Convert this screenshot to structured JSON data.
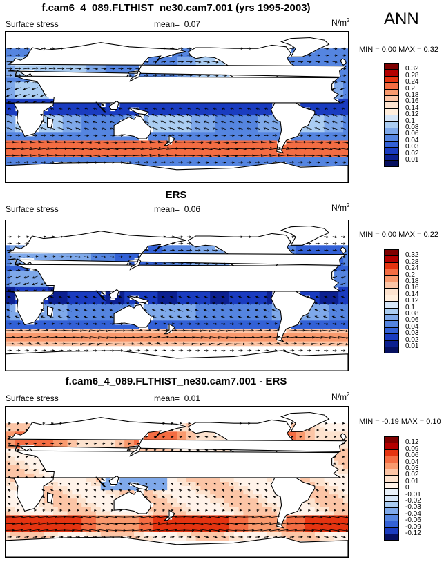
{
  "season": "ANN",
  "units_base": "N/m",
  "units_exp": "2",
  "panels": [
    {
      "title": "f.cam6_4_089.FLTHIST_ne30.cam7.001 (yrs 1995-2003)",
      "variable": "Surface stress",
      "mean_label": "mean=",
      "mean_value": "0.07",
      "minmax": "MIN =  0.00 MAX =  0.32",
      "mode": "field",
      "colorbar": {
        "labels": [
          "0.32",
          "0.28",
          "0.24",
          "0.2",
          "0.18",
          "0.16",
          "0.14",
          "0.12",
          "0.1",
          "0.08",
          "0.06",
          "0.04",
          "0.03",
          "0.02",
          "0.01"
        ],
        "colors": [
          "#7f0000",
          "#b30000",
          "#e53411",
          "#f46d43",
          "#f99a6e",
          "#fcc5a6",
          "#fde3cf",
          "#ffeedd",
          "#d6e6f8",
          "#abcdf2",
          "#7fa9ea",
          "#5585e0",
          "#3361d6",
          "#1a3cc0",
          "#0c2090",
          "#061060"
        ]
      }
    },
    {
      "title": "ERS",
      "variable": "Surface stress",
      "mean_label": "mean=",
      "mean_value": "0.06",
      "minmax": "MIN =  0.00 MAX =  0.22",
      "mode": "field",
      "colorbar": {
        "labels": [
          "0.32",
          "0.28",
          "0.24",
          "0.2",
          "0.18",
          "0.16",
          "0.14",
          "0.12",
          "0.1",
          "0.08",
          "0.06",
          "0.04",
          "0.03",
          "0.02",
          "0.01"
        ],
        "colors": [
          "#7f0000",
          "#b30000",
          "#e53411",
          "#f46d43",
          "#f99a6e",
          "#fcc5a6",
          "#fde3cf",
          "#ffeedd",
          "#d6e6f8",
          "#abcdf2",
          "#7fa9ea",
          "#5585e0",
          "#3361d6",
          "#1a3cc0",
          "#0c2090",
          "#061060"
        ]
      }
    },
    {
      "title": "f.cam6_4_089.FLTHIST_ne30.cam7.001 - ERS",
      "variable": "Surface stress",
      "mean_label": "mean=",
      "mean_value": "0.01",
      "minmax": "MIN = -0.19 MAX =  0.10",
      "mode": "diff",
      "colorbar": {
        "labels": [
          "0.12",
          "0.09",
          "0.06",
          "0.04",
          "0.03",
          "0.02",
          "0.01",
          "0",
          "-0.01",
          "-0.02",
          "-0.03",
          "-0.04",
          "-0.06",
          "-0.09",
          "-0.12"
        ],
        "colors": [
          "#7f0000",
          "#b30000",
          "#e53411",
          "#f46d43",
          "#f99a6e",
          "#fcc5a6",
          "#fde3cf",
          "#fff3ea",
          "#eaf2fb",
          "#d6e6f8",
          "#abcdf2",
          "#7fa9ea",
          "#5585e0",
          "#3361d6",
          "#1a3cc0",
          "#061060"
        ]
      }
    }
  ]
}
